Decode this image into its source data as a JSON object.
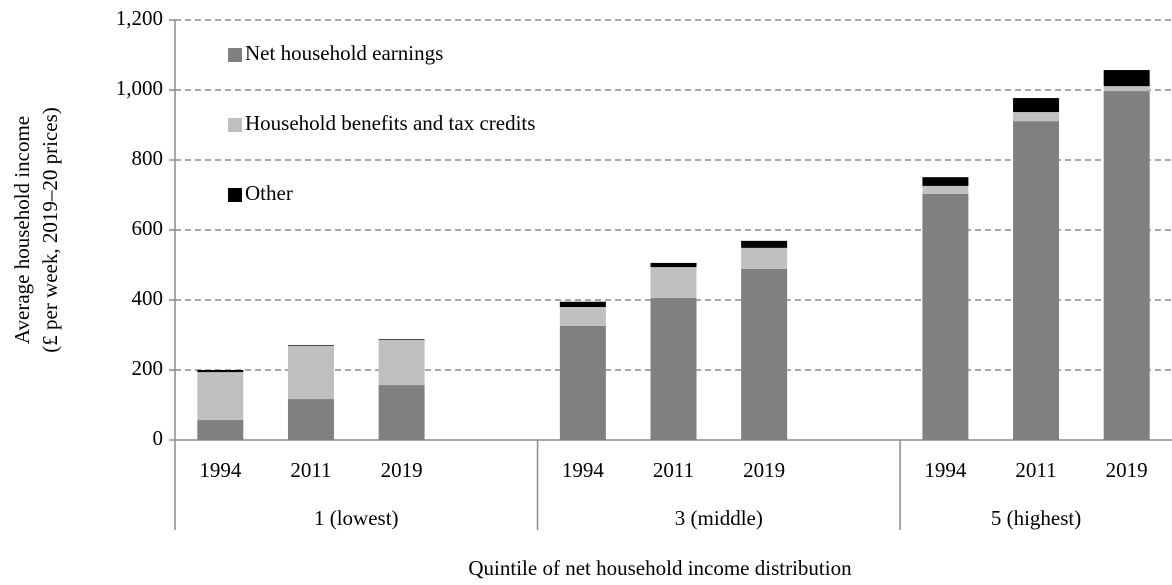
{
  "chart_data": {
    "type": "stacked_bar",
    "ylabel": [
      "Average household income",
      "(£ per week, 2019–20 prices)"
    ],
    "xlabel": "Quintile of net household income distribution",
    "categories": [
      "1994",
      "2011",
      "2019",
      null,
      "1994",
      "2011",
      "2019",
      null,
      "1994",
      "2011",
      "2019"
    ],
    "groups": [
      "1 (lowest)",
      "3 (middle)",
      "5 (highest)"
    ],
    "series": [
      {
        "name": "Net household earnings",
        "color": "#808080",
        "values": [
          57,
          117,
          157,
          null,
          326,
          406,
          489,
          null,
          703,
          911,
          997
        ]
      },
      {
        "name": "Household benefits and tax credits",
        "color": "#c0c0c0",
        "values": [
          137,
          152,
          129,
          null,
          54,
          88,
          60,
          null,
          23,
          26,
          14
        ]
      },
      {
        "name": "Other",
        "color": "#000000",
        "values": [
          6,
          2,
          2,
          null,
          15,
          12,
          20,
          null,
          25,
          40,
          46
        ]
      }
    ],
    "ylim": [
      0,
      1200
    ],
    "yticks": [
      0,
      200,
      400,
      600,
      800,
      {
        "value": 1000,
        "label": "1,000"
      },
      {
        "value": 1200,
        "label": "1,200"
      }
    ],
    "grid": true,
    "legend": "top-left"
  }
}
